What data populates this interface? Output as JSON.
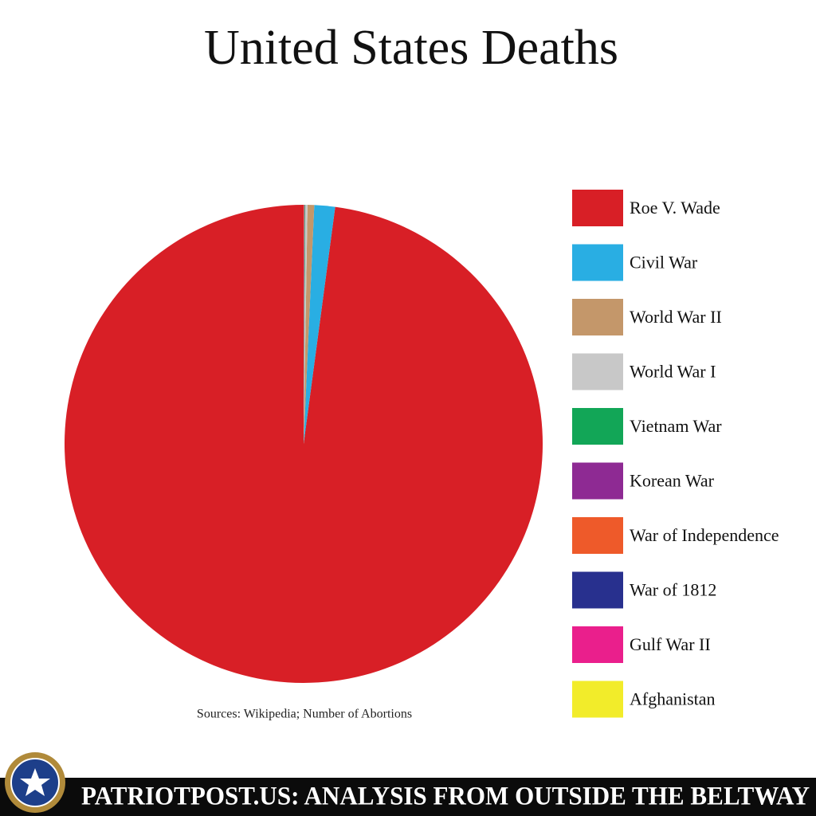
{
  "chart_data": {
    "type": "pie",
    "title": "United States Deaths",
    "categories": [
      "Roe V. Wade",
      "Civil War",
      "World War II",
      "World War I",
      "Vietnam War",
      "Korean War",
      "War of Independence",
      "War of 1812",
      "Gulf War II",
      "Afghanistan"
    ],
    "values": [
      97.9,
      1.4,
      0.45,
      0.15,
      0.04,
      0.03,
      0.02,
      0.01,
      0.005,
      0.005
    ],
    "colors": [
      "#d81f26",
      "#29aee3",
      "#c4976a",
      "#c8c8c8",
      "#12a657",
      "#8e2a93",
      "#ee5a2a",
      "#28308e",
      "#ea1f8c",
      "#f2ec2a"
    ],
    "source": "Sources: Wikipedia; Number of Abortions",
    "legend": "right"
  },
  "footer": {
    "text": "PATRIOTPOST.US: ANALYSIS FROM OUTSIDE THE BELTWAY"
  }
}
